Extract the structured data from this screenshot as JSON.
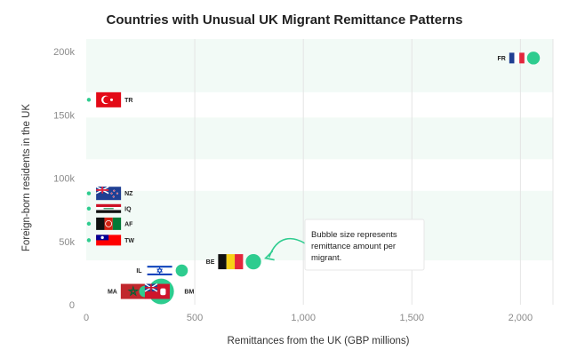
{
  "chart_data": {
    "type": "scatter",
    "title": "Countries with Unusual UK Migrant Remittance Patterns",
    "xlabel": "Remittances from the UK (GBP millions)",
    "ylabel": "Foreign-born residents in the UK",
    "xlim": [
      0,
      2150
    ],
    "ylim": [
      0,
      210000
    ],
    "x_ticks": [
      "0",
      "500",
      "1,000",
      "1,500",
      "2,000"
    ],
    "y_ticks": [
      "0",
      "50k",
      "100k",
      "150k",
      "200k"
    ],
    "grid": "vertical",
    "accent_color": "#2ecc8f",
    "band_color": "#f2faf6",
    "points": [
      {
        "code": "FR",
        "x": 2060,
        "y": 195000,
        "rel_size": 1.0,
        "label_side": "left"
      },
      {
        "code": "TR",
        "x": 12,
        "y": 162000,
        "rel_size": 0.35,
        "label_side": "right"
      },
      {
        "code": "NZ",
        "x": 12,
        "y": 88000,
        "rel_size": 0.35,
        "label_side": "right"
      },
      {
        "code": "IQ",
        "x": 12,
        "y": 76000,
        "rel_size": 0.35,
        "label_side": "right"
      },
      {
        "code": "AF",
        "x": 12,
        "y": 64000,
        "rel_size": 0.35,
        "label_side": "right"
      },
      {
        "code": "TW",
        "x": 12,
        "y": 51000,
        "rel_size": 0.35,
        "label_side": "right"
      },
      {
        "code": "BE",
        "x": 770,
        "y": 34000,
        "rel_size": 1.2,
        "label_side": "left"
      },
      {
        "code": "IL",
        "x": 440,
        "y": 27000,
        "rel_size": 0.95,
        "label_side": "left"
      },
      {
        "code": "MA",
        "x": 345,
        "y": 10500,
        "rel_size": 2.0,
        "label_side": "left"
      },
      {
        "code": "BM",
        "x": 270,
        "y": 10500,
        "rel_size": 0.9,
        "label_side": "right"
      }
    ],
    "annotation": {
      "lines": [
        "Bubble size represents",
        "remittance amount per",
        "migrant."
      ],
      "points_to": "BE"
    }
  }
}
